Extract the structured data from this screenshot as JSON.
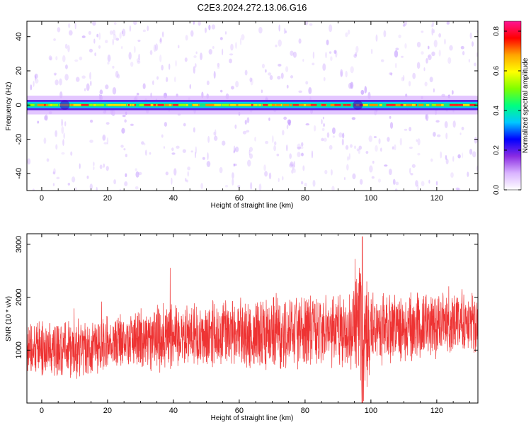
{
  "title": "C2E3.2024.272.13.06.G16",
  "chart_data": [
    {
      "type": "heatmap",
      "xlabel": "Height of straight line (km)",
      "ylabel": "Frequency (Hz)",
      "xlim": [
        -4.5,
        132.5
      ],
      "ylim": [
        -50,
        49
      ],
      "xticks": [
        0,
        20,
        40,
        60,
        80,
        100,
        120
      ],
      "yticks": [
        -40,
        -20,
        0,
        20,
        40
      ],
      "colorbar": {
        "label": "Normalized spectral amplitude",
        "range": [
          0,
          0.85
        ],
        "ticks": [
          0.0,
          0.2,
          0.4,
          0.6,
          0.8
        ],
        "colormap": [
          "#ffffff",
          "#d9b3ff",
          "#8a2be2",
          "#0000ff",
          "#00c8ff",
          "#00ff80",
          "#7fff00",
          "#ffff00",
          "#ffa500",
          "#ff0000",
          "#ff1493"
        ]
      },
      "band_center_hz": 0,
      "band_half_width_hz": 2.5,
      "grid": false
    },
    {
      "type": "line",
      "xlabel": "Height of straight line (km)",
      "ylabel": "SNR (10 * v/v)",
      "xlim": [
        -4.5,
        132.5
      ],
      "ylim": [
        0,
        3200
      ],
      "xticks": [
        0,
        20,
        40,
        60,
        80,
        100,
        120
      ],
      "yticks": [
        1000,
        2000,
        3000
      ],
      "color": "#ee3333",
      "x_range": [
        -4.5,
        132.5
      ],
      "envelope_x": [
        -4,
        0,
        10,
        15,
        20,
        30,
        40,
        50,
        60,
        70,
        80,
        90,
        95,
        97,
        98,
        100,
        110,
        120,
        132
      ],
      "envelope_center": [
        1000,
        1050,
        1000,
        1050,
        1150,
        1200,
        1250,
        1280,
        1300,
        1320,
        1350,
        1350,
        1380,
        1400,
        1100,
        1400,
        1450,
        1500,
        1550
      ],
      "envelope_amplitude": [
        500,
        550,
        550,
        550,
        550,
        600,
        650,
        650,
        650,
        700,
        700,
        700,
        750,
        1400,
        1300,
        700,
        650,
        650,
        600
      ],
      "max_snr": 3150,
      "grid": false
    }
  ]
}
